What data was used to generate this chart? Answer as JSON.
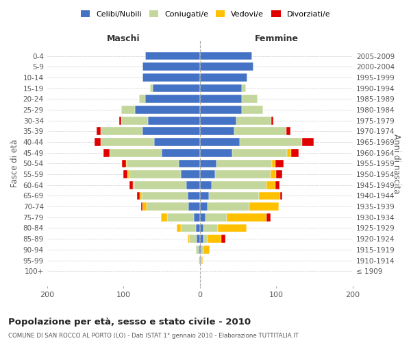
{
  "age_groups": [
    "100+",
    "95-99",
    "90-94",
    "85-89",
    "80-84",
    "75-79",
    "70-74",
    "65-69",
    "60-64",
    "55-59",
    "50-54",
    "45-49",
    "40-44",
    "35-39",
    "30-34",
    "25-29",
    "20-24",
    "15-19",
    "10-14",
    "5-9",
    "0-4"
  ],
  "birth_years": [
    "≤ 1909",
    "1910-1914",
    "1915-1919",
    "1920-1924",
    "1925-1929",
    "1930-1934",
    "1935-1939",
    "1940-1944",
    "1945-1949",
    "1950-1954",
    "1955-1959",
    "1960-1964",
    "1965-1969",
    "1970-1974",
    "1975-1979",
    "1980-1984",
    "1985-1989",
    "1990-1994",
    "1995-1999",
    "2000-2004",
    "2005-2009"
  ],
  "male_celibi": [
    0,
    1,
    2,
    4,
    5,
    8,
    15,
    16,
    18,
    25,
    28,
    50,
    60,
    75,
    68,
    85,
    72,
    62,
    75,
    75,
    72
  ],
  "male_coniugati": [
    0,
    1,
    3,
    10,
    20,
    35,
    55,
    60,
    68,
    68,
    68,
    68,
    70,
    55,
    35,
    18,
    8,
    3,
    0,
    0,
    0
  ],
  "male_vedovi": [
    0,
    0,
    0,
    2,
    5,
    8,
    5,
    3,
    2,
    2,
    1,
    0,
    0,
    0,
    0,
    0,
    0,
    0,
    0,
    0,
    0
  ],
  "male_divorziati": [
    0,
    0,
    0,
    0,
    0,
    0,
    2,
    3,
    4,
    5,
    5,
    8,
    8,
    5,
    3,
    0,
    0,
    0,
    0,
    0,
    0
  ],
  "female_celibi": [
    0,
    1,
    2,
    5,
    5,
    7,
    10,
    12,
    15,
    20,
    22,
    42,
    52,
    45,
    48,
    55,
    55,
    55,
    62,
    70,
    68
  ],
  "female_coniugati": [
    0,
    1,
    3,
    5,
    18,
    28,
    55,
    65,
    72,
    72,
    72,
    72,
    82,
    68,
    45,
    28,
    20,
    5,
    0,
    0,
    0
  ],
  "female_vedovi": [
    0,
    2,
    8,
    18,
    38,
    52,
    38,
    28,
    12,
    8,
    5,
    5,
    0,
    0,
    0,
    0,
    0,
    0,
    0,
    0,
    0
  ],
  "female_divorziati": [
    0,
    0,
    0,
    5,
    0,
    5,
    0,
    3,
    5,
    8,
    10,
    10,
    15,
    5,
    3,
    0,
    0,
    0,
    0,
    0,
    0
  ],
  "color_celibi": "#4472c4",
  "color_coniugati": "#c3d69b",
  "color_vedovi": "#ffc000",
  "color_divorziati": "#e00000",
  "title": "Popolazione per età, sesso e stato civile - 2010",
  "subtitle": "COMUNE DI SAN ROCCO AL PORTO (LO) - Dati ISTAT 1° gennaio 2010 - Elaborazione TUTTITALIA.IT",
  "ylabel_left": "Fasce di età",
  "ylabel_right": "Anni di nascita",
  "xlim": 200,
  "background_color": "#ffffff",
  "grid_color": "#cccccc",
  "legend_labels": [
    "Celibi/Nubili",
    "Coniugati/e",
    "Vedovi/e",
    "Divorziati/e"
  ]
}
